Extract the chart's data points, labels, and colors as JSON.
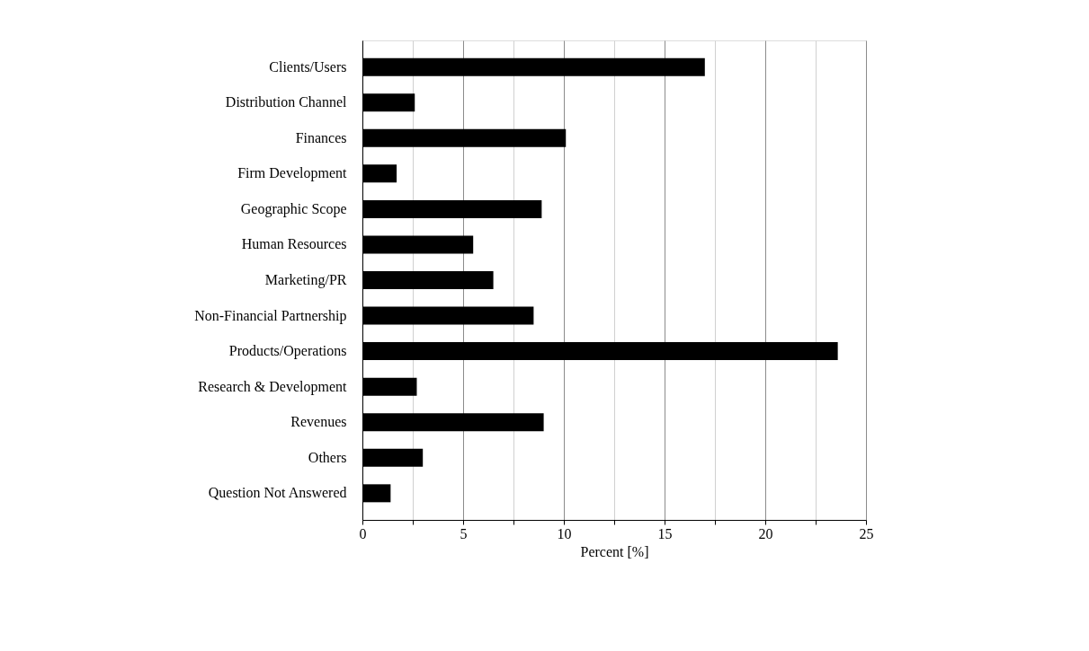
{
  "chart_data": {
    "type": "bar",
    "orientation": "horizontal",
    "xlabel": "Percent [%]",
    "categories": [
      "Clients/Users",
      "Distribution Channel",
      "Finances",
      "Firm Development",
      "Geographic Scope",
      "Human Resources",
      "Marketing/PR",
      "Non-Financial Partnership",
      "Products/Operations",
      "Research & Development",
      "Revenues",
      "Others",
      "Question Not Answered"
    ],
    "values": [
      17.0,
      2.6,
      10.1,
      1.7,
      8.9,
      5.5,
      6.5,
      8.5,
      23.6,
      2.7,
      9.0,
      3.0,
      1.4
    ],
    "color": "#000000",
    "xlim": [
      0,
      25
    ],
    "xticks": [
      0,
      {
        "value": 2.5,
        "label": null
      },
      5,
      {
        "value": 7.5,
        "label": null
      },
      10,
      {
        "value": 12.5,
        "label": null
      },
      15,
      {
        "value": 17.5,
        "label": null
      },
      20,
      {
        "value": 22.5,
        "label": null
      },
      25
    ],
    "grid": "x"
  }
}
